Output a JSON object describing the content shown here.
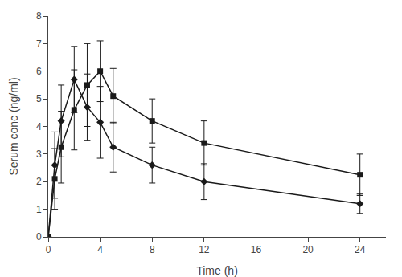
{
  "chart_data": {
    "type": "line",
    "x": [
      0,
      0.5,
      1,
      2,
      3,
      4,
      5,
      8,
      12,
      24
    ],
    "series": [
      {
        "values": [
          0.0,
          2.6,
          4.2,
          5.7,
          4.7,
          4.15,
          3.25,
          2.6,
          2.0,
          1.2
        ],
        "errors": [
          0.0,
          1.2,
          1.3,
          1.2,
          1.2,
          1.3,
          0.9,
          0.65,
          0.65,
          0.35
        ],
        "marker": "diamond",
        "line_style": "solid",
        "color": "#1a1a1a"
      },
      {
        "values": [
          0.0,
          2.1,
          3.25,
          4.6,
          5.5,
          6.0,
          5.1,
          4.2,
          3.4,
          2.25
        ],
        "errors": [
          0.0,
          1.1,
          1.3,
          1.45,
          1.5,
          1.1,
          1.0,
          0.8,
          0.8,
          0.75
        ],
        "marker": "square",
        "line_style": "solid",
        "color": "#1a1a1a"
      }
    ],
    "xlabel": "Time (h)",
    "ylabel": "Serum conc (ng/ml)",
    "xlim": [
      0,
      26
    ],
    "ylim": [
      0,
      8
    ],
    "xticks": [
      0,
      4,
      8,
      12,
      16,
      20,
      24
    ],
    "yticks": [
      0,
      1,
      2,
      3,
      4,
      5,
      6,
      7,
      8
    ],
    "grid": false
  }
}
